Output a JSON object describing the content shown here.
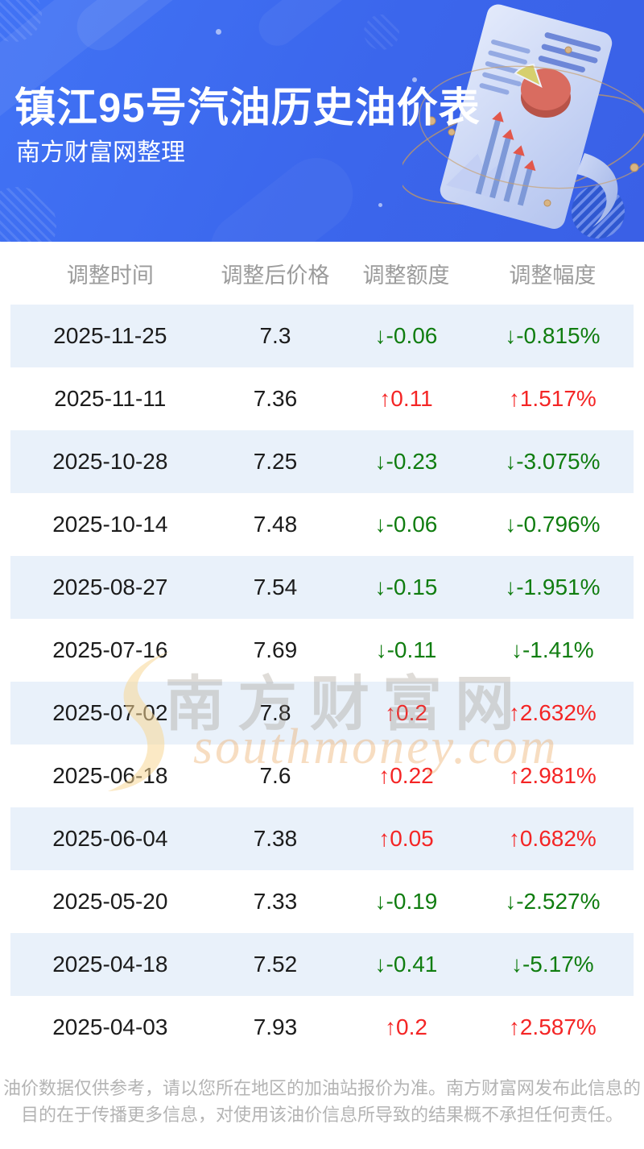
{
  "header": {
    "title": "镇江95号汽油历史油价表",
    "subtitle": "南方财富网整理"
  },
  "chart_data": {
    "type": "table",
    "title": "镇江95号汽油历史油价表",
    "columns": [
      "调整时间",
      "调整后价格",
      "调整额度",
      "调整幅度"
    ],
    "rows": [
      {
        "date": "2025-11-25",
        "price": "7.3",
        "change": "-0.06",
        "percent": "-0.815%",
        "direction": "down"
      },
      {
        "date": "2025-11-11",
        "price": "7.36",
        "change": "0.11",
        "percent": "1.517%",
        "direction": "up"
      },
      {
        "date": "2025-10-28",
        "price": "7.25",
        "change": "-0.23",
        "percent": "-3.075%",
        "direction": "down"
      },
      {
        "date": "2025-10-14",
        "price": "7.48",
        "change": "-0.06",
        "percent": "-0.796%",
        "direction": "down"
      },
      {
        "date": "2025-08-27",
        "price": "7.54",
        "change": "-0.15",
        "percent": "-1.951%",
        "direction": "down"
      },
      {
        "date": "2025-07-16",
        "price": "7.69",
        "change": "-0.11",
        "percent": "-1.41%",
        "direction": "down"
      },
      {
        "date": "2025-07-02",
        "price": "7.8",
        "change": "0.2",
        "percent": "2.632%",
        "direction": "up"
      },
      {
        "date": "2025-06-18",
        "price": "7.6",
        "change": "0.22",
        "percent": "2.981%",
        "direction": "up"
      },
      {
        "date": "2025-06-04",
        "price": "7.38",
        "change": "0.05",
        "percent": "0.682%",
        "direction": "up"
      },
      {
        "date": "2025-05-20",
        "price": "7.33",
        "change": "-0.19",
        "percent": "-2.527%",
        "direction": "down"
      },
      {
        "date": "2025-04-18",
        "price": "7.52",
        "change": "-0.41",
        "percent": "-5.17%",
        "direction": "down"
      },
      {
        "date": "2025-04-03",
        "price": "7.93",
        "change": "0.2",
        "percent": "2.587%",
        "direction": "up"
      }
    ]
  },
  "symbols": {
    "up_arrow": "↑",
    "down_arrow": "↓"
  },
  "colors": {
    "header_blue": "#3b66ec",
    "up": "#f42525",
    "down": "#107d10",
    "alt_row_bg": "#e9f1fa",
    "column_header_text": "#9b9b9b",
    "footer_text": "#b4b4b4"
  },
  "watermark": {
    "cn_text": "南方财富网",
    "en_text": "southmoney.com"
  },
  "footer": {
    "lines": [
      "油价数据仅供参考，请以您所在地区的加油站报价为准。南方财富网发布此信息的",
      "目的在于传播更多信息，对使用该油价信息所导致的结果概不承担任何责任。"
    ]
  }
}
